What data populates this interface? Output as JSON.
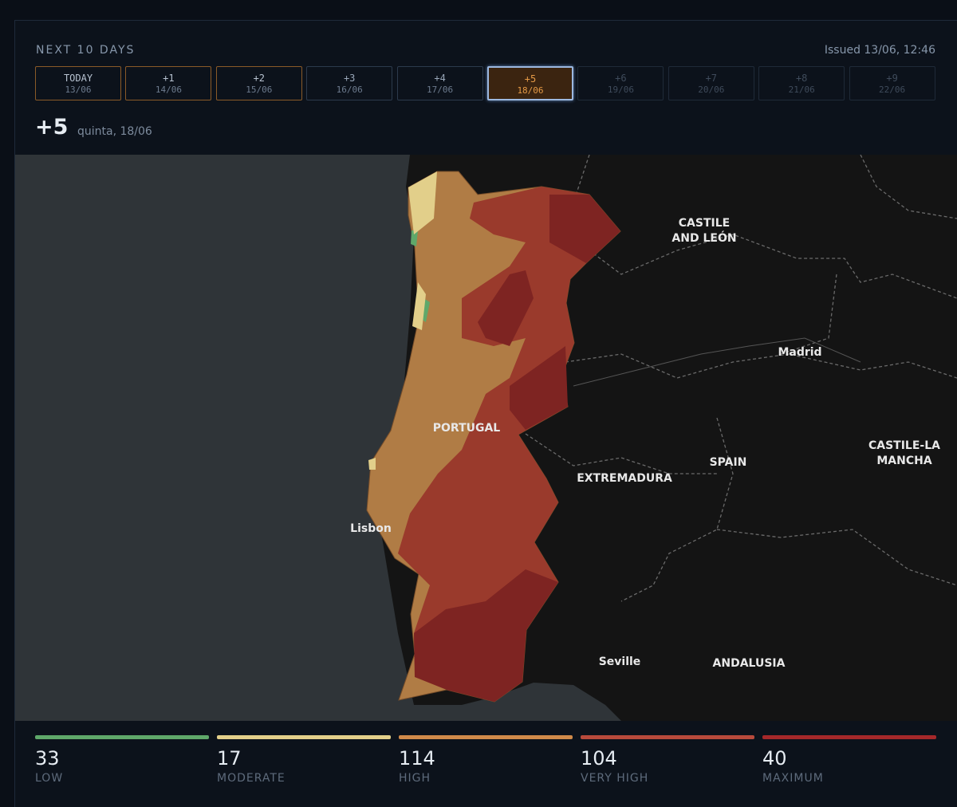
{
  "header": {
    "title": "NEXT 10 DAYS",
    "issued": "Issued 13/06, 12:46"
  },
  "days": [
    {
      "label": "TODAY",
      "date": "13/06"
    },
    {
      "label": "+1",
      "date": "14/06"
    },
    {
      "label": "+2",
      "date": "15/06"
    },
    {
      "label": "+3",
      "date": "16/06"
    },
    {
      "label": "+4",
      "date": "17/06"
    },
    {
      "label": "+5",
      "date": "18/06"
    },
    {
      "label": "+6",
      "date": "19/06"
    },
    {
      "label": "+7",
      "date": "20/06"
    },
    {
      "label": "+8",
      "date": "21/06"
    },
    {
      "label": "+9",
      "date": "22/06"
    }
  ],
  "selected": {
    "label": "+5",
    "date": "quinta, 18/06"
  },
  "map": {
    "labels": [
      {
        "lines": [
          "CASTILE",
          "AND LEÓN"
        ]
      },
      {
        "lines": [
          "Madrid"
        ]
      },
      {
        "lines": [
          "PORTUGAL"
        ]
      },
      {
        "lines": [
          "SPAIN"
        ]
      },
      {
        "lines": [
          "EXTREMADURA"
        ]
      },
      {
        "lines": [
          "CASTILE-LA",
          "MANCHA"
        ]
      },
      {
        "lines": [
          "Lisbon"
        ]
      },
      {
        "lines": [
          "Seville"
        ]
      },
      {
        "lines": [
          "ANDALUSIA"
        ]
      }
    ]
  },
  "legend": [
    {
      "count": "33",
      "label": "LOW",
      "color": "#5fa86a"
    },
    {
      "count": "17",
      "label": "MODERATE",
      "color": "#e2cf8a"
    },
    {
      "count": "114",
      "label": "HIGH",
      "color": "#d08a4a"
    },
    {
      "count": "104",
      "label": "VERY HIGH",
      "color": "#b84a3c"
    },
    {
      "count": "40",
      "label": "MAXIMUM",
      "color": "#a5282a"
    }
  ]
}
